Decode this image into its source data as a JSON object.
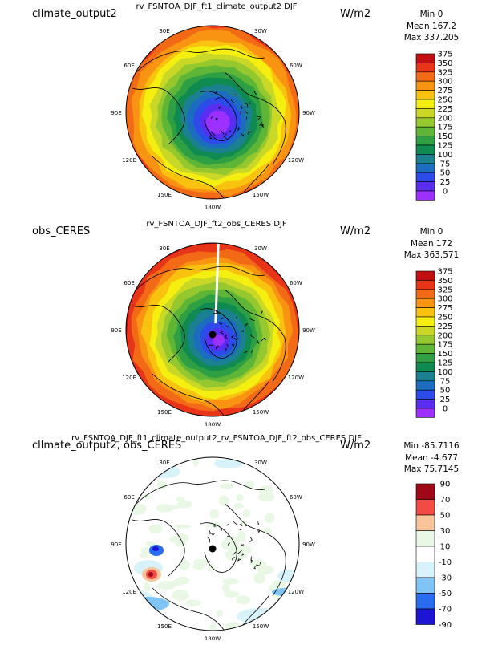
{
  "colors": {
    "abs": [
      "#9b30ff",
      "#5a2ef2",
      "#2c4be8",
      "#1c6cc0",
      "#1b8090",
      "#0f8a50",
      "#2ea043",
      "#5fb536",
      "#95c82f",
      "#c9d826",
      "#f4ef10",
      "#f8c20f",
      "#f89412",
      "#f26a16",
      "#e83419",
      "#c40f12",
      "#8c0000"
    ],
    "diff": [
      "#1e14d4",
      "#2a6cf0",
      "#7fc4f5",
      "#d8f2fa",
      "#ffffff",
      "#e8f8e4",
      "#f8c59a",
      "#f24b46",
      "#a0081a"
    ]
  },
  "panels": [
    {
      "case_label": "cllmate_output2",
      "plot_title": "rv_FSNTOA_DJF_ft1_climate_output2 DJF",
      "units": "W/m2",
      "stats": [
        "Min 0",
        "Mean 167.2",
        "Max 337.205"
      ],
      "colorbar_labels": [
        "375",
        "350",
        "325",
        "300",
        "275",
        "250",
        "225",
        "200",
        "175",
        "150",
        "125",
        "100",
        "75",
        "50",
        "25",
        "0"
      ],
      "map_style": "abs",
      "map_seed": 3
    },
    {
      "case_label": "obs_CERES",
      "plot_title": "rv_FSNTOA_DJF_ft2_obs_CERES DJF",
      "units": "W/m2",
      "stats": [
        "Min 0",
        "Mean 172",
        "Max 363.571"
      ],
      "colorbar_labels": [
        "375",
        "350",
        "325",
        "300",
        "275",
        "250",
        "225",
        "200",
        "175",
        "150",
        "125",
        "100",
        "75",
        "50",
        "25",
        "0"
      ],
      "map_style": "abs_obs",
      "map_seed": 7
    },
    {
      "case_label": "cllmate_output2, obs_CERES",
      "plot_title": "rv_FSNTOA_DJF_ft1_climate_output2_rv_FSNTOA_DJF_ft2_obs_CERES DJF",
      "units": "W/m2",
      "stats": [
        "Min -85.7116",
        "Mean -4.677",
        "Max 75.7145"
      ],
      "colorbar_labels": [
        "90",
        "70",
        "50",
        "30",
        "10",
        "-10",
        "-30",
        "-50",
        "-70",
        "-90"
      ],
      "map_style": "diff",
      "map_seed": 11
    }
  ],
  "lon_labels": [
    "30E",
    "30W",
    "60E",
    "60W",
    "90E",
    "90W",
    "120E",
    "120W",
    "150E",
    "150W",
    "180W"
  ],
  "chart_data": [
    {
      "type": "heatmap",
      "title": "rv_FSNTOA_DJF_ft1_climate_output2 DJF",
      "case": "cllmate_output2",
      "units": "W/m2",
      "projection": "polar stereographic (north pole)",
      "levels": [
        0,
        25,
        50,
        75,
        100,
        125,
        150,
        175,
        200,
        225,
        250,
        275,
        300,
        325,
        350,
        375
      ],
      "min": 0,
      "mean": 167.2,
      "max": 337.205
    },
    {
      "type": "heatmap",
      "title": "rv_FSNTOA_DJF_ft2_obs_CERES DJF",
      "case": "obs_CERES",
      "units": "W/m2",
      "projection": "polar stereographic (north pole)",
      "levels": [
        0,
        25,
        50,
        75,
        100,
        125,
        150,
        175,
        200,
        225,
        250,
        275,
        300,
        325,
        350,
        375
      ],
      "min": 0,
      "mean": 172,
      "max": 363.571
    },
    {
      "type": "heatmap",
      "title": "rv_FSNTOA_DJF_ft1_climate_output2_rv_FSNTOA_DJF_ft2_obs_CERES DJF",
      "case": "cllmate_output2, obs_CERES",
      "units": "W/m2",
      "projection": "polar stereographic (north pole)",
      "levels": [
        -90,
        -70,
        -50,
        -30,
        -10,
        10,
        30,
        50,
        70,
        90
      ],
      "min": -85.7116,
      "mean": -4.677,
      "max": 75.7145
    }
  ]
}
